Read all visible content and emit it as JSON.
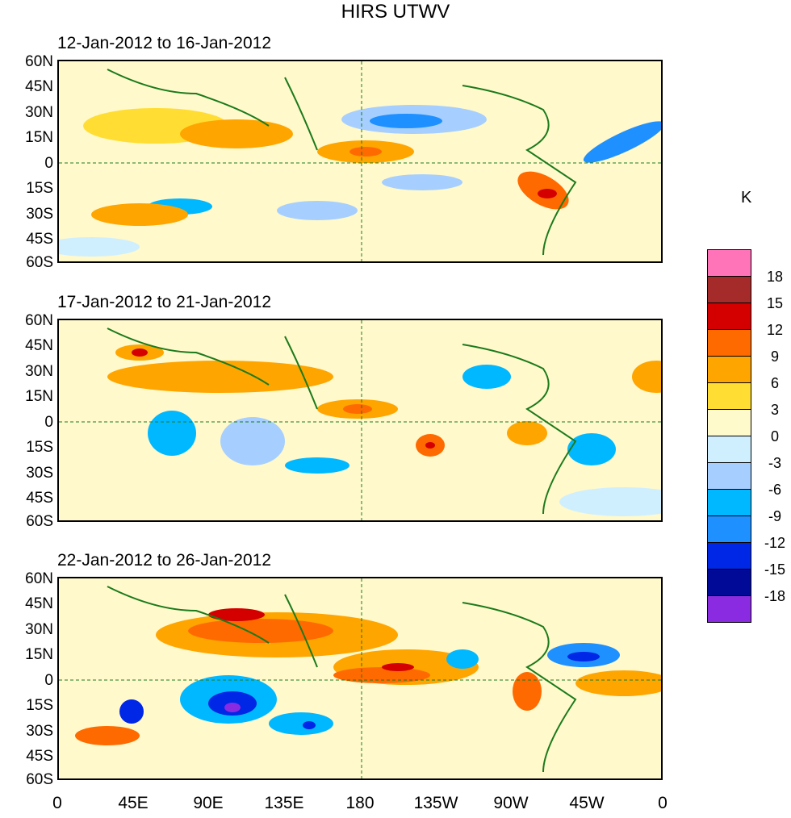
{
  "title": "HIRS UTWV",
  "units": "K",
  "panels": [
    {
      "title": "12-Jan-2012 to 16-Jan-2012"
    },
    {
      "title": "17-Jan-2012 to 21-Jan-2012"
    },
    {
      "title": "22-Jan-2012 to 26-Jan-2012"
    }
  ],
  "lat_labels": [
    "60N",
    "45N",
    "30N",
    "15N",
    "0",
    "15S",
    "30S",
    "45S",
    "60S"
  ],
  "lon_labels": [
    "0",
    "45E",
    "90E",
    "135E",
    "180",
    "135W",
    "90W",
    "45W",
    "0"
  ],
  "colorbar": {
    "colors": [
      "#ff73b9",
      "#a52a2a",
      "#d40000",
      "#ff6a00",
      "#ffa500",
      "#ffdd33",
      "#fffacc",
      "#cfefff",
      "#a6cfff",
      "#00b8ff",
      "#1e90ff",
      "#0026e6",
      "#000a96",
      "#8a2be2"
    ],
    "labels": [
      "18",
      "15",
      "12",
      "9",
      "6",
      "3",
      "0",
      "-3",
      "-6",
      "-9",
      "-12",
      "-15",
      "-18"
    ]
  }
}
